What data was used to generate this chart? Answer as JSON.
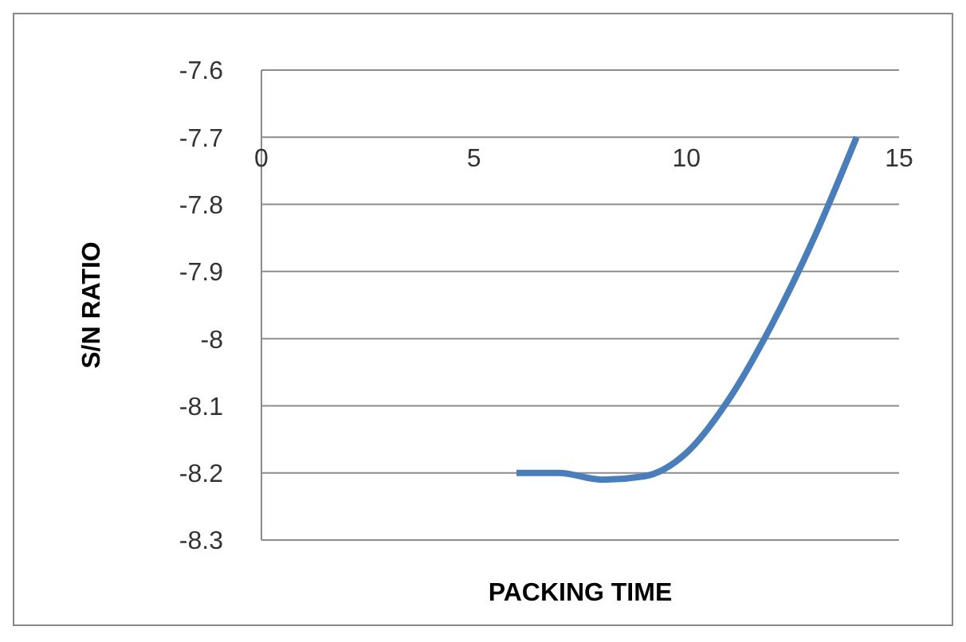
{
  "chart_data": {
    "type": "line",
    "xlabel": "PACKING TIME",
    "ylabel": "S/N RATIO",
    "x": [
      6,
      7,
      8,
      9,
      10,
      11,
      12,
      13,
      14
    ],
    "series": [
      {
        "color": "#4a7ebb",
        "values": [
          -8.2,
          -8.2,
          -8.21,
          -8.205,
          -8.17,
          -8.09,
          -7.98,
          -7.85,
          -7.7
        ]
      }
    ],
    "xlim": [
      0,
      15
    ],
    "xticks": [
      0,
      5,
      10,
      15
    ],
    "ylim": [
      -8.3,
      -7.6
    ],
    "yticks": [
      -8.3,
      -8.2,
      -8.1,
      -8,
      -7.9,
      -7.8,
      -7.7,
      -7.6
    ],
    "grid": "y",
    "marker": "none",
    "line_style": "solid",
    "legend": false
  }
}
